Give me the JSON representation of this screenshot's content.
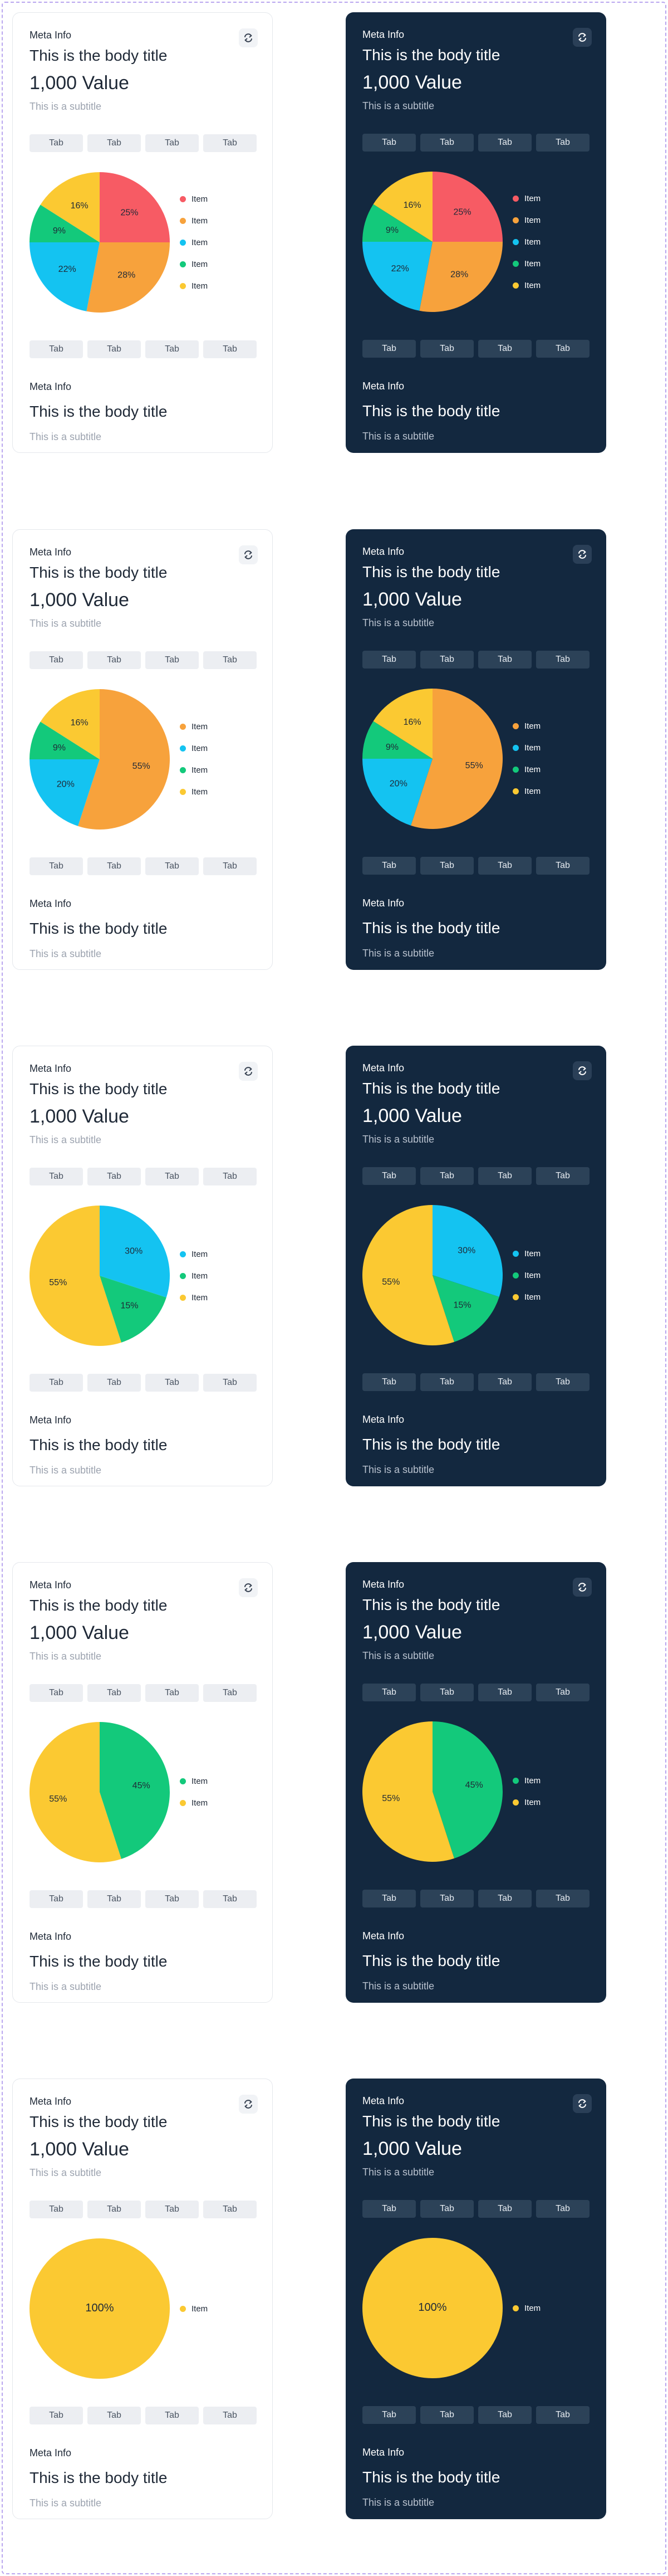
{
  "card_text": {
    "meta": "Meta Info",
    "title": "This is the body title",
    "value": "1,000 Value",
    "subtitle": "This is a subtitle",
    "tab_label": "Tab",
    "legend_label": "Item",
    "footer_meta": "Meta Info",
    "footer_title": "This is the body title",
    "footer_subtitle": "This is a subtitle"
  },
  "icons": {
    "refresh": "refresh-icon"
  },
  "colors": {
    "red": "#f75b64",
    "orange": "#f7a23c",
    "cyan": "#14c3f1",
    "green": "#13c97b",
    "yellow": "#fbc932",
    "dark_card": "#13283f",
    "light_card": "#ffffff"
  },
  "chart_data": [
    {
      "type": "pie",
      "slices": [
        {
          "label": "Item",
          "value": 25,
          "display": "25%",
          "color": "#f75b64"
        },
        {
          "label": "Item",
          "value": 28,
          "display": "28%",
          "color": "#f7a23c"
        },
        {
          "label": "Item",
          "value": 22,
          "display": "22%",
          "color": "#14c3f1"
        },
        {
          "label": "Item",
          "value": 9,
          "display": "9%",
          "color": "#13c97b"
        },
        {
          "label": "Item",
          "value": 16,
          "display": "16%",
          "color": "#fbc932"
        }
      ]
    },
    {
      "type": "pie",
      "slices": [
        {
          "label": "Item",
          "value": 55,
          "display": "55%",
          "color": "#f7a23c"
        },
        {
          "label": "Item",
          "value": 20,
          "display": "20%",
          "color": "#14c3f1"
        },
        {
          "label": "Item",
          "value": 9,
          "display": "9%",
          "color": "#13c97b"
        },
        {
          "label": "Item",
          "value": 16,
          "display": "16%",
          "color": "#fbc932"
        }
      ]
    },
    {
      "type": "pie",
      "slices": [
        {
          "label": "Item",
          "value": 30,
          "display": "30%",
          "color": "#14c3f1"
        },
        {
          "label": "Item",
          "value": 15,
          "display": "15%",
          "color": "#13c97b"
        },
        {
          "label": "Item",
          "value": 55,
          "display": "55%",
          "color": "#fbc932"
        }
      ]
    },
    {
      "type": "pie",
      "slices": [
        {
          "label": "Item",
          "value": 45,
          "display": "45%",
          "color": "#13c97b"
        },
        {
          "label": "Item",
          "value": 55,
          "display": "55%",
          "color": "#fbc932"
        }
      ]
    },
    {
      "type": "pie",
      "slices": [
        {
          "label": "Item",
          "value": 100,
          "display": "100%",
          "color": "#fbc932"
        }
      ]
    }
  ]
}
